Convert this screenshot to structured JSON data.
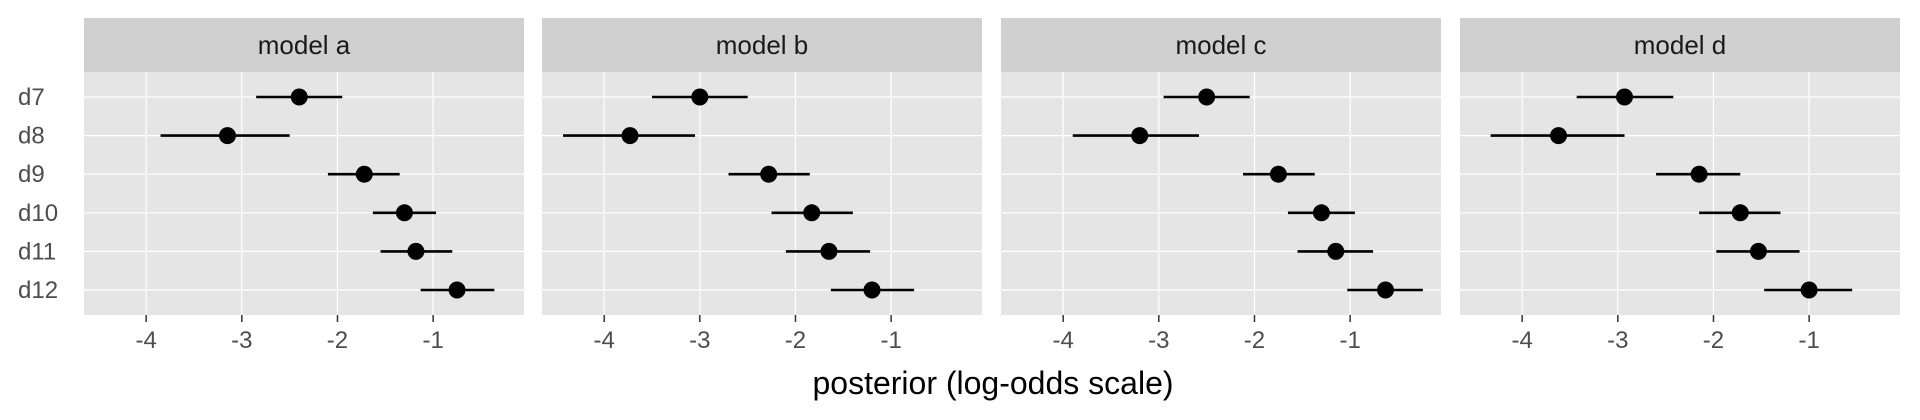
{
  "chart_data": {
    "type": "scatter",
    "xlabel": "posterior (log-odds scale)",
    "categories": [
      "d7",
      "d8",
      "d9",
      "d10",
      "d11",
      "d12"
    ],
    "xlim": [
      -4.65,
      -0.05
    ],
    "xticks": [
      -4,
      -3,
      -2,
      -1
    ],
    "grid": true,
    "legend": "none",
    "point_color": "#000000",
    "panel_background": "#e5e5e5",
    "strip_background": "#d0d0d0",
    "panels": [
      {
        "name": "model a",
        "points": [
          {
            "category": "d7",
            "estimate": -2.4,
            "lower": -2.85,
            "upper": -1.95
          },
          {
            "category": "d8",
            "estimate": -3.15,
            "lower": -3.85,
            "upper": -2.5
          },
          {
            "category": "d9",
            "estimate": -1.72,
            "lower": -2.1,
            "upper": -1.35
          },
          {
            "category": "d10",
            "estimate": -1.3,
            "lower": -1.63,
            "upper": -0.97
          },
          {
            "category": "d11",
            "estimate": -1.18,
            "lower": -1.55,
            "upper": -0.8
          },
          {
            "category": "d12",
            "estimate": -0.75,
            "lower": -1.13,
            "upper": -0.36
          }
        ]
      },
      {
        "name": "model b",
        "points": [
          {
            "category": "d7",
            "estimate": -3.0,
            "lower": -3.5,
            "upper": -2.5
          },
          {
            "category": "d8",
            "estimate": -3.73,
            "lower": -4.43,
            "upper": -3.05
          },
          {
            "category": "d9",
            "estimate": -2.28,
            "lower": -2.7,
            "upper": -1.85
          },
          {
            "category": "d10",
            "estimate": -1.83,
            "lower": -2.25,
            "upper": -1.4
          },
          {
            "category": "d11",
            "estimate": -1.65,
            "lower": -2.1,
            "upper": -1.22
          },
          {
            "category": "d12",
            "estimate": -1.2,
            "lower": -1.63,
            "upper": -0.76
          }
        ]
      },
      {
        "name": "model c",
        "points": [
          {
            "category": "d7",
            "estimate": -2.5,
            "lower": -2.95,
            "upper": -2.05
          },
          {
            "category": "d8",
            "estimate": -3.2,
            "lower": -3.9,
            "upper": -2.58
          },
          {
            "category": "d9",
            "estimate": -1.75,
            "lower": -2.12,
            "upper": -1.37
          },
          {
            "category": "d10",
            "estimate": -1.3,
            "lower": -1.65,
            "upper": -0.95
          },
          {
            "category": "d11",
            "estimate": -1.15,
            "lower": -1.55,
            "upper": -0.76
          },
          {
            "category": "d12",
            "estimate": -0.63,
            "lower": -1.03,
            "upper": -0.24
          }
        ]
      },
      {
        "name": "model d",
        "points": [
          {
            "category": "d7",
            "estimate": -2.93,
            "lower": -3.43,
            "upper": -2.42
          },
          {
            "category": "d8",
            "estimate": -3.62,
            "lower": -4.33,
            "upper": -2.93
          },
          {
            "category": "d9",
            "estimate": -2.15,
            "lower": -2.6,
            "upper": -1.72
          },
          {
            "category": "d10",
            "estimate": -1.72,
            "lower": -2.15,
            "upper": -1.3
          },
          {
            "category": "d11",
            "estimate": -1.53,
            "lower": -1.97,
            "upper": -1.1
          },
          {
            "category": "d12",
            "estimate": -1.0,
            "lower": -1.47,
            "upper": -0.55
          }
        ]
      }
    ]
  }
}
